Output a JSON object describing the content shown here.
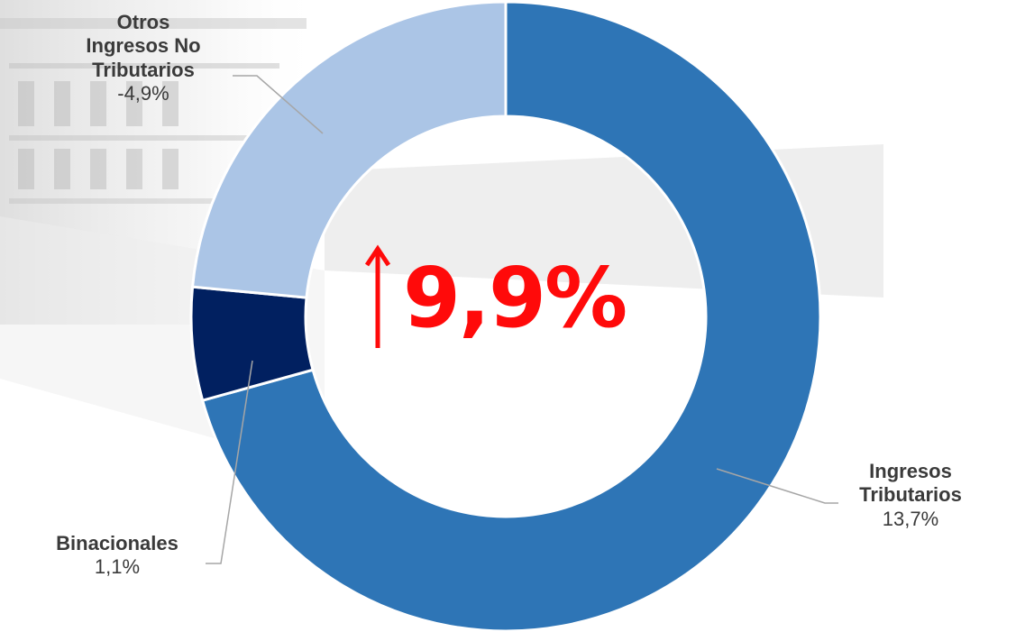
{
  "colors": {
    "series": [
      "#2e75b6",
      "#012060",
      "#abc5e6"
    ],
    "highlight": "#ff0a0a",
    "text": "#3a3a3a",
    "leader": "#a6a6a6"
  },
  "center": {
    "icon": "up-arrow-icon",
    "value": "9,9%"
  },
  "labels": {
    "otros_name": "Otros\nIngresos No\nTributarios",
    "otros_value": "-4,9%",
    "binacionales_name": "Binacionales",
    "binacionales_value": "1,1%",
    "tributarios_name": "Ingresos\nTributarios",
    "tributarios_value": "13,7%"
  },
  "chart_data": {
    "type": "pie",
    "categories": [
      "Ingresos Tributarios",
      "Binacionales",
      "Otros Ingresos No Tributarios"
    ],
    "values": [
      70.7,
      5.8,
      23.5
    ],
    "data_labels": [
      "13,7%",
      "1,1%",
      "-4,9%"
    ],
    "title": "",
    "legend": "none"
  }
}
